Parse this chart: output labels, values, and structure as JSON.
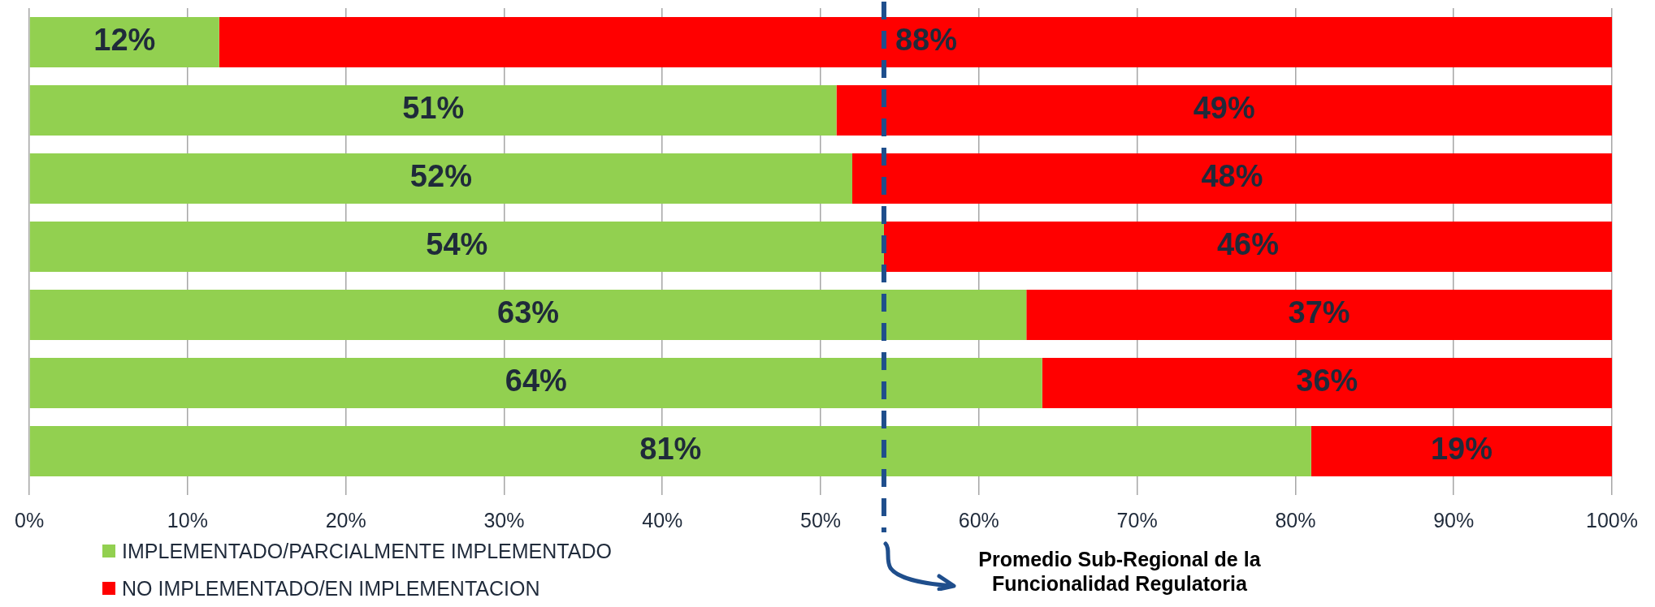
{
  "chart_data": {
    "type": "bar",
    "orientation": "horizontal",
    "stacked": true,
    "categories": [
      null,
      null,
      null,
      null,
      null,
      null,
      null
    ],
    "series": [
      {
        "name": "IMPLEMENTADO/PARCIALMENTE IMPLEMENTADO",
        "color": "#92d050",
        "values": [
          12,
          51,
          52,
          54,
          63,
          64,
          81
        ]
      },
      {
        "name": "NO IMPLEMENTADO/EN IMPLEMENTACION",
        "color": "#ff0000",
        "values": [
          88,
          49,
          48,
          46,
          37,
          36,
          19
        ]
      }
    ],
    "xlim": [
      0,
      100
    ],
    "xticks": [
      {
        "value": 0,
        "label": "0%"
      },
      {
        "value": 10,
        "label": "10%"
      },
      {
        "value": 20,
        "label": "20%"
      },
      {
        "value": 30,
        "label": "30%"
      },
      {
        "value": 40,
        "label": "40%"
      },
      {
        "value": 50,
        "label": "50%"
      },
      {
        "value": 60,
        "label": "60%"
      },
      {
        "value": 70,
        "label": "70%"
      },
      {
        "value": 80,
        "label": "80%"
      },
      {
        "value": 90,
        "label": "90%"
      },
      {
        "value": 100,
        "label": "100%"
      }
    ],
    "value_labels": [
      [
        "12%",
        "51%",
        "52%",
        "54%",
        "63%",
        "64%",
        "81%"
      ],
      [
        "88%",
        "49%",
        "48%",
        "46%",
        "37%",
        "36%",
        "19%"
      ]
    ],
    "ref_lines": [
      {
        "axis": "x",
        "value": 54,
        "label": "Promedio Sub-Regional de la Funcionalidad Regulatoria",
        "color": "#1f4e8c",
        "line_style": "dashed"
      }
    ],
    "grid": "x",
    "legend": "bottom left"
  }
}
